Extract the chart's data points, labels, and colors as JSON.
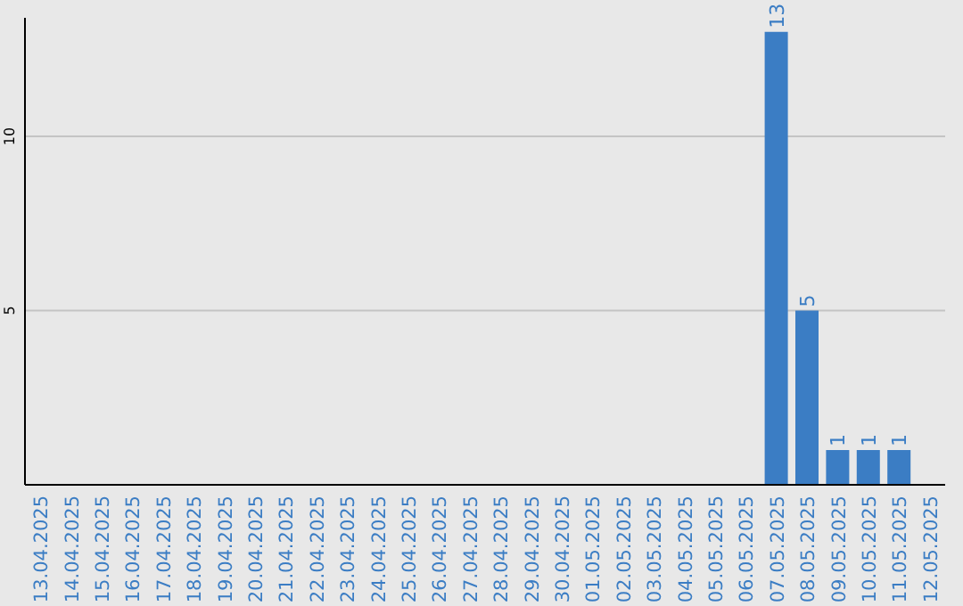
{
  "chart_data": {
    "type": "bar",
    "categories": [
      "13.04.2025",
      "14.04.2025",
      "15.04.2025",
      "16.04.2025",
      "17.04.2025",
      "18.04.2025",
      "19.04.2025",
      "20.04.2025",
      "21.04.2025",
      "22.04.2025",
      "23.04.2025",
      "24.04.2025",
      "25.04.2025",
      "26.04.2025",
      "27.04.2025",
      "28.04.2025",
      "29.04.2025",
      "30.04.2025",
      "01.05.2025",
      "02.05.2025",
      "03.05.2025",
      "04.05.2025",
      "05.05.2025",
      "06.05.2025",
      "07.05.2025",
      "08.05.2025",
      "09.05.2025",
      "10.05.2025",
      "11.05.2025",
      "12.05.2025"
    ],
    "values": [
      0,
      0,
      0,
      0,
      0,
      0,
      0,
      0,
      0,
      0,
      0,
      0,
      0,
      0,
      0,
      0,
      0,
      0,
      0,
      0,
      0,
      0,
      0,
      0,
      13,
      5,
      1,
      1,
      1,
      0
    ],
    "value_labels": [
      null,
      null,
      null,
      null,
      null,
      null,
      null,
      null,
      null,
      null,
      null,
      null,
      null,
      null,
      null,
      null,
      null,
      null,
      null,
      null,
      null,
      null,
      null,
      null,
      "13",
      "5",
      "1",
      "1",
      "1",
      null
    ],
    "color": "#3b7dc4",
    "ylim": [
      0,
      13.4
    ],
    "yticks": [
      5,
      10
    ],
    "grid": "y"
  }
}
